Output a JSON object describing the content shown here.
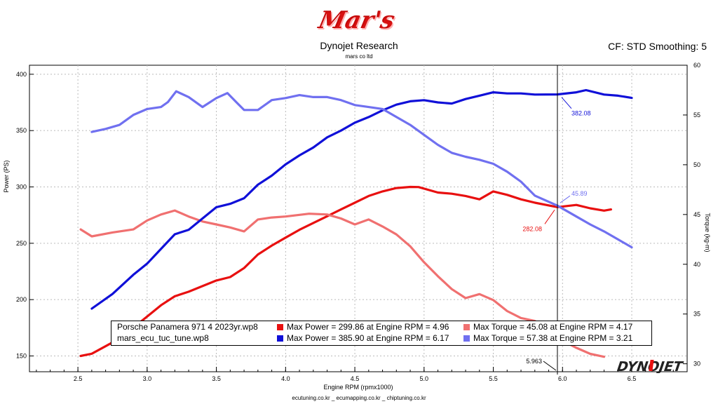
{
  "header": {
    "logo_text": "Mar's",
    "title": "Dynojet Research",
    "subtitle": "mars co ltd",
    "cf_smoothing": "CF: STD Smoothing: 5"
  },
  "footer": {
    "text": "ecutuning.co.kr _ ecumapping.co.kr _ chiptuning.co.kr"
  },
  "brand": {
    "text": "DYNOJET"
  },
  "legend": [
    {
      "file": "Porsche Panamera 971 4 2023yr.wp8",
      "power_color": "#e81010",
      "torque_color": "#f07070",
      "power_text": "Max Power = 299.86 at Engine RPM = 4.96",
      "torque_text": "Max Torque = 45.08 at Engine RPM = 4.17"
    },
    {
      "file": "mars_ecu_tuc_tune.wp8",
      "power_color": "#1010d8",
      "torque_color": "#7070f0",
      "power_text": "Max Power = 385.90 at Engine RPM = 6.17",
      "torque_text": "Max Torque = 57.38 at Engine RPM = 3.21"
    }
  ],
  "chart_data": {
    "type": "line",
    "xlabel": "Engine RPM (rpmx1000)",
    "ylabel_left": "Power (PS)",
    "ylabel_right": "Torque (kg-m)",
    "xlim": [
      2.15,
      6.9
    ],
    "ylim_left": [
      136,
      408
    ],
    "ylim_right": [
      29.2,
      60
    ],
    "x_ticks": [
      "2.5",
      "3.0",
      "3.5",
      "4.0",
      "4.5",
      "5.0",
      "5.5",
      "6.0",
      "6.5"
    ],
    "y_left_ticks": [
      "150",
      "200",
      "250",
      "300",
      "350",
      "400"
    ],
    "y_right_ticks": [
      "30",
      "35",
      "40",
      "45",
      "50",
      "55",
      "60"
    ],
    "grid": true,
    "cursor": {
      "x_label": "5.963",
      "x": 5.963
    },
    "annotations": [
      {
        "label": "382.08",
        "color": "#1010d8"
      },
      {
        "label": "45.89",
        "color": "#7070f0"
      },
      {
        "label": "282.08",
        "color": "#e81010"
      }
    ],
    "series": [
      {
        "name": "Porsche Panamera 971 4 2023yr.wp8 Power",
        "axis": "left",
        "color": "#e81010",
        "points": [
          [
            2.52,
            150
          ],
          [
            2.6,
            152
          ],
          [
            2.75,
            162
          ],
          [
            2.9,
            175
          ],
          [
            3.0,
            185
          ],
          [
            3.1,
            195
          ],
          [
            3.2,
            203
          ],
          [
            3.3,
            207
          ],
          [
            3.4,
            212
          ],
          [
            3.5,
            217
          ],
          [
            3.6,
            220
          ],
          [
            3.7,
            228
          ],
          [
            3.8,
            240
          ],
          [
            3.9,
            248
          ],
          [
            4.0,
            255
          ],
          [
            4.1,
            262
          ],
          [
            4.2,
            268
          ],
          [
            4.3,
            274
          ],
          [
            4.4,
            280
          ],
          [
            4.5,
            286
          ],
          [
            4.6,
            292
          ],
          [
            4.7,
            296
          ],
          [
            4.8,
            299
          ],
          [
            4.9,
            300
          ],
          [
            4.96,
            299.9
          ],
          [
            5.1,
            295
          ],
          [
            5.2,
            294
          ],
          [
            5.3,
            292
          ],
          [
            5.4,
            289
          ],
          [
            5.5,
            296
          ],
          [
            5.6,
            293
          ],
          [
            5.7,
            289
          ],
          [
            5.8,
            286
          ],
          [
            5.963,
            282.08
          ],
          [
            6.1,
            284
          ],
          [
            6.2,
            281
          ],
          [
            6.3,
            279
          ],
          [
            6.35,
            280
          ]
        ]
      },
      {
        "name": "Porsche Panamera 971 4 2023yr.wp8 Torque",
        "axis": "right",
        "color": "#f07070",
        "points": [
          [
            2.52,
            43.5
          ],
          [
            2.6,
            42.8
          ],
          [
            2.75,
            43.2
          ],
          [
            2.9,
            43.5
          ],
          [
            3.0,
            44.4
          ],
          [
            3.1,
            45.0
          ],
          [
            3.2,
            45.4
          ],
          [
            3.3,
            44.8
          ],
          [
            3.4,
            44.3
          ],
          [
            3.5,
            44.0
          ],
          [
            3.6,
            43.7
          ],
          [
            3.7,
            43.3
          ],
          [
            3.8,
            44.5
          ],
          [
            3.9,
            44.7
          ],
          [
            4.0,
            44.8
          ],
          [
            4.17,
            45.08
          ],
          [
            4.3,
            45.0
          ],
          [
            4.4,
            44.6
          ],
          [
            4.5,
            44.0
          ],
          [
            4.6,
            44.5
          ],
          [
            4.7,
            43.8
          ],
          [
            4.8,
            43.0
          ],
          [
            4.9,
            41.8
          ],
          [
            5.0,
            40.2
          ],
          [
            5.1,
            38.8
          ],
          [
            5.2,
            37.5
          ],
          [
            5.3,
            36.6
          ],
          [
            5.4,
            37.0
          ],
          [
            5.5,
            36.4
          ],
          [
            5.6,
            35.3
          ],
          [
            5.7,
            34.6
          ],
          [
            5.8,
            34.3
          ],
          [
            5.9,
            33.4
          ],
          [
            5.963,
            32.6
          ],
          [
            6.1,
            31.6
          ],
          [
            6.2,
            31.0
          ],
          [
            6.3,
            30.7
          ]
        ]
      },
      {
        "name": "mars_ecu_tuc_tune.wp8 Power",
        "axis": "left",
        "color": "#1010d8",
        "points": [
          [
            2.6,
            192
          ],
          [
            2.75,
            205
          ],
          [
            2.9,
            222
          ],
          [
            3.0,
            232
          ],
          [
            3.1,
            245
          ],
          [
            3.2,
            258
          ],
          [
            3.3,
            262
          ],
          [
            3.4,
            272
          ],
          [
            3.5,
            282
          ],
          [
            3.6,
            285
          ],
          [
            3.7,
            290
          ],
          [
            3.8,
            302
          ],
          [
            3.9,
            310
          ],
          [
            4.0,
            320
          ],
          [
            4.1,
            328
          ],
          [
            4.2,
            335
          ],
          [
            4.3,
            344
          ],
          [
            4.4,
            350
          ],
          [
            4.5,
            357
          ],
          [
            4.6,
            362
          ],
          [
            4.7,
            368
          ],
          [
            4.8,
            373
          ],
          [
            4.9,
            376
          ],
          [
            5.0,
            377
          ],
          [
            5.1,
            375
          ],
          [
            5.2,
            374
          ],
          [
            5.3,
            378
          ],
          [
            5.4,
            381
          ],
          [
            5.5,
            384
          ],
          [
            5.6,
            383
          ],
          [
            5.7,
            383
          ],
          [
            5.8,
            382
          ],
          [
            5.963,
            382.08
          ],
          [
            6.1,
            384
          ],
          [
            6.17,
            385.9
          ],
          [
            6.3,
            382
          ],
          [
            6.4,
            381
          ],
          [
            6.5,
            379
          ]
        ]
      },
      {
        "name": "mars_ecu_tuc_tune.wp8 Torque",
        "axis": "right",
        "color": "#7070f0",
        "points": [
          [
            2.6,
            53.3
          ],
          [
            2.7,
            53.6
          ],
          [
            2.8,
            54.0
          ],
          [
            2.9,
            55.0
          ],
          [
            3.0,
            55.6
          ],
          [
            3.1,
            55.8
          ],
          [
            3.15,
            56.3
          ],
          [
            3.21,
            57.38
          ],
          [
            3.3,
            56.8
          ],
          [
            3.4,
            55.8
          ],
          [
            3.5,
            56.7
          ],
          [
            3.58,
            57.2
          ],
          [
            3.65,
            56.2
          ],
          [
            3.7,
            55.5
          ],
          [
            3.8,
            55.5
          ],
          [
            3.9,
            56.5
          ],
          [
            4.0,
            56.7
          ],
          [
            4.1,
            57.0
          ],
          [
            4.2,
            56.8
          ],
          [
            4.3,
            56.8
          ],
          [
            4.4,
            56.5
          ],
          [
            4.5,
            56.0
          ],
          [
            4.6,
            55.8
          ],
          [
            4.7,
            55.6
          ],
          [
            4.8,
            54.8
          ],
          [
            4.9,
            54.0
          ],
          [
            5.0,
            53.0
          ],
          [
            5.1,
            52.0
          ],
          [
            5.2,
            51.2
          ],
          [
            5.3,
            50.8
          ],
          [
            5.4,
            50.5
          ],
          [
            5.5,
            50.1
          ],
          [
            5.6,
            49.3
          ],
          [
            5.7,
            48.3
          ],
          [
            5.8,
            46.9
          ],
          [
            5.963,
            45.89
          ],
          [
            6.1,
            44.8
          ],
          [
            6.2,
            44.0
          ],
          [
            6.3,
            43.3
          ],
          [
            6.4,
            42.5
          ],
          [
            6.5,
            41.7
          ]
        ]
      }
    ]
  }
}
